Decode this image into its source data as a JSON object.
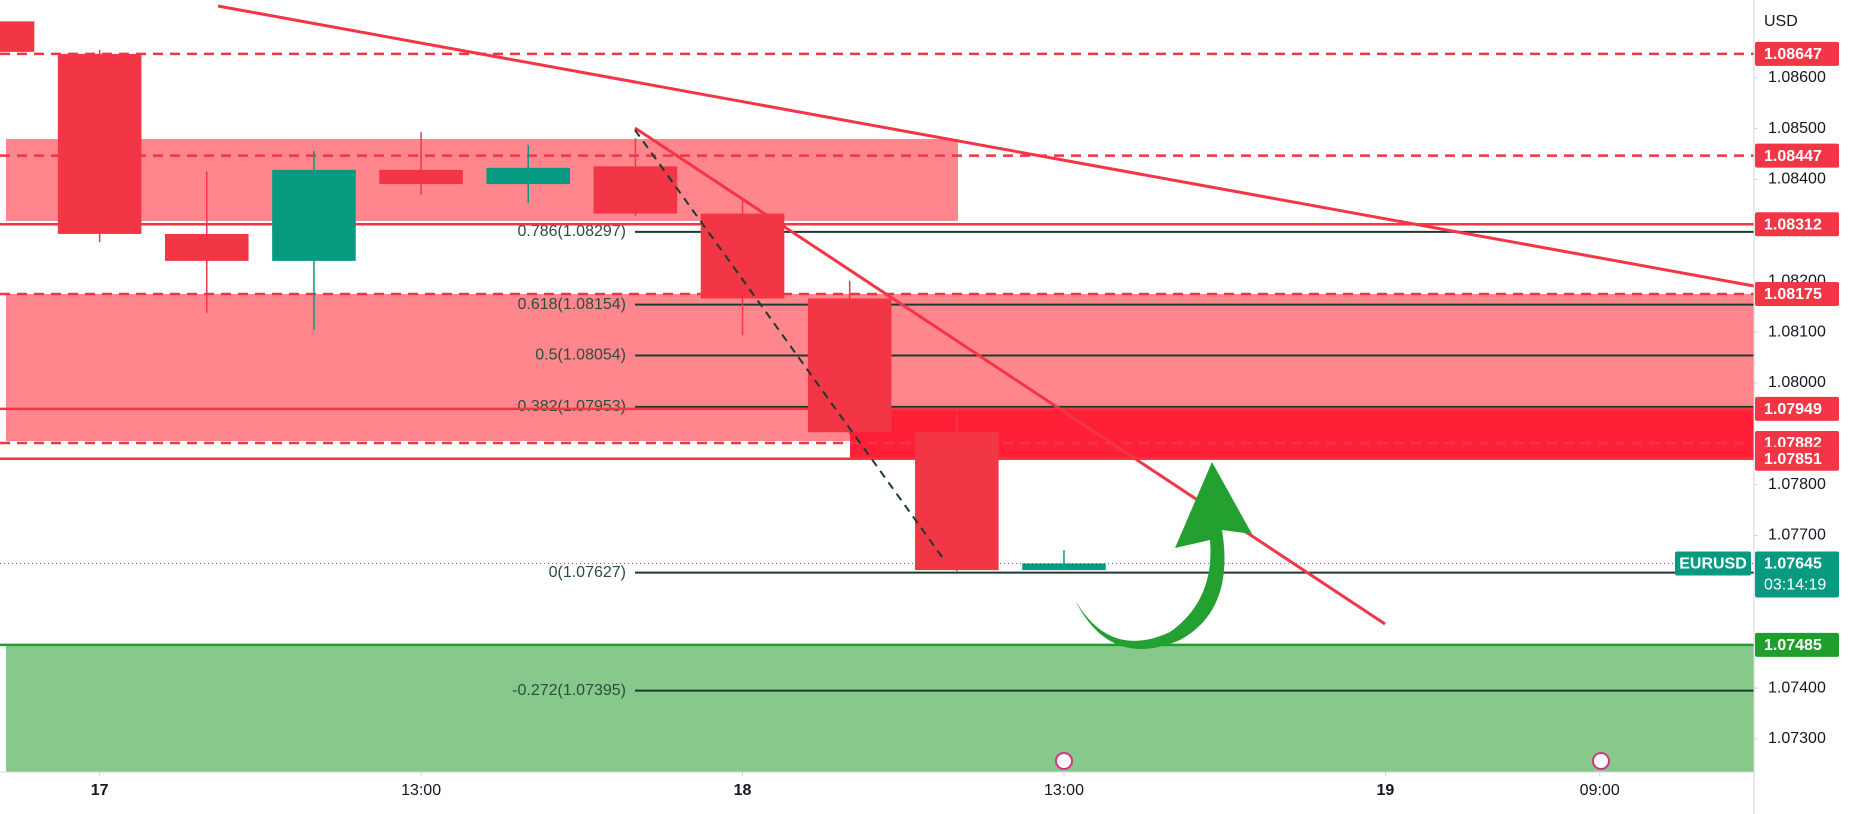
{
  "chart_data": {
    "type": "candlestick",
    "currency": "USD",
    "symbol": "EURUSD",
    "countdown": "03:14:19",
    "last_price": 1.07645,
    "up_color": "#089981",
    "down_color": "#f23645",
    "x": [
      -1,
      0,
      1,
      2,
      3,
      4,
      5,
      6,
      7,
      8,
      9
    ],
    "open": [
      1.08711,
      1.08647,
      1.08293,
      1.0824,
      1.08419,
      1.08391,
      1.08426,
      1.08333,
      1.08166,
      1.07903,
      1.07632
    ],
    "high": [
      1.08711,
      1.08655,
      1.08416,
      1.08456,
      1.08493,
      1.08468,
      1.08481,
      1.08358,
      1.08201,
      1.07952,
      1.07671
    ],
    "low": [
      1.08651,
      1.08277,
      1.08138,
      1.08105,
      1.0837,
      1.08354,
      1.08328,
      1.08094,
      1.07899,
      1.0763,
      1.07632
    ],
    "close": [
      1.08651,
      1.08293,
      1.0824,
      1.08419,
      1.08391,
      1.08423,
      1.08333,
      1.08166,
      1.07903,
      1.07632,
      1.07645
    ],
    "xlim": [
      -0.93,
      15.44
    ],
    "xticks": [
      {
        "value": 0,
        "label": "17"
      },
      {
        "value": 3,
        "label": "13:00"
      },
      {
        "value": 6,
        "label": "18"
      },
      {
        "value": 9,
        "label": "13:00"
      },
      {
        "value": 12,
        "label": "19"
      },
      {
        "value": 14,
        "label": "09:00"
      }
    ],
    "ylim": [
      1.07235,
      1.08753
    ],
    "yticks": [
      {
        "value": 1.086,
        "label": "1.08600"
      },
      {
        "value": 1.085,
        "label": "1.08500"
      },
      {
        "value": 1.084,
        "label": "1.08400"
      },
      {
        "value": 1.082,
        "label": "1.08200"
      },
      {
        "value": 1.081,
        "label": "1.08100"
      },
      {
        "value": 1.08,
        "label": "1.08000"
      },
      {
        "value": 1.078,
        "label": "1.07800"
      },
      {
        "value": 1.077,
        "label": "1.07700"
      },
      {
        "value": 1.074,
        "label": "1.07400"
      },
      {
        "value": 1.073,
        "label": "1.07300"
      }
    ],
    "levels": [
      {
        "value": 1.08647,
        "color": "#f23645",
        "style": "dashed"
      },
      {
        "value": 1.08447,
        "color": "#f23645",
        "style": "dashed"
      },
      {
        "value": 1.08312,
        "color": "#f23645",
        "style": "solid"
      },
      {
        "value": 1.08175,
        "color": "#f23645",
        "style": "dashed"
      },
      {
        "value": 1.07949,
        "color": "#f23645",
        "style": "solid"
      },
      {
        "value": 1.07882,
        "color": "#f23645",
        "style": "dashed"
      },
      {
        "value": 1.07851,
        "color": "#f23645",
        "style": "solid"
      },
      {
        "value": 1.07485,
        "color": "#1f9e2c",
        "style": "solid"
      }
    ],
    "fib_levels": [
      {
        "label": "0.786(1.08297)",
        "value": 1.08297
      },
      {
        "label": "0.618(1.08154)",
        "value": 1.08154
      },
      {
        "label": "0.5(1.08054)",
        "value": 1.08054
      },
      {
        "label": "0.382(1.07953)",
        "value": 1.07953
      },
      {
        "label": "0(1.07627)",
        "value": 1.07627
      },
      {
        "label": "-0.272(1.07395)",
        "value": 1.07395
      }
    ]
  }
}
